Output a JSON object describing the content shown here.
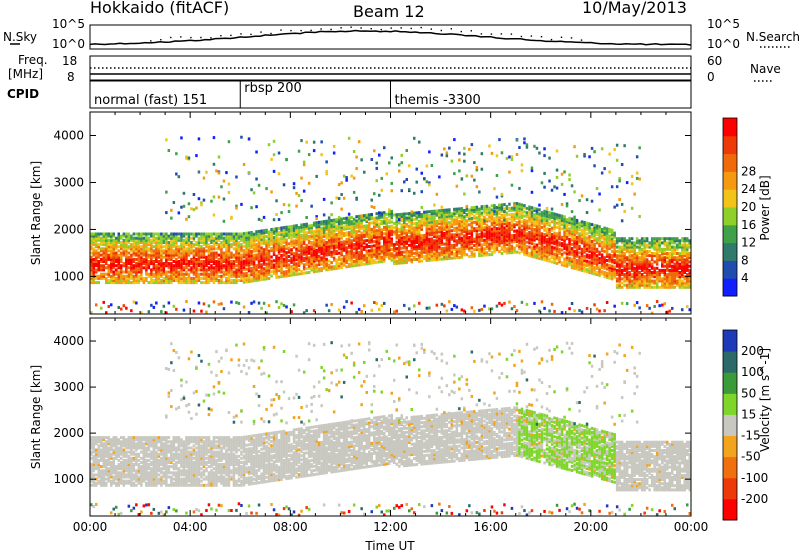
{
  "header": {
    "title_left": "Hokkaido (fitACF)",
    "title_center": "Beam 12",
    "title_right": "10/May/2013"
  },
  "noise_panel": {
    "left_label": "N.Sky",
    "right_label": "N.Search",
    "left_ticks": [
      "10^5",
      "10^0"
    ],
    "right_ticks": [
      "10^5",
      "10^0"
    ]
  },
  "freq_panel": {
    "left_label_1": "Freq.",
    "left_label_2": "[MHz]",
    "left_ticks": [
      "18",
      "8"
    ],
    "right_label": "Nave",
    "right_ticks": [
      "60",
      "0"
    ]
  },
  "cpid": {
    "label": "CPID",
    "modes": [
      {
        "name": "normal (fast) 151",
        "start_hour": 0
      },
      {
        "name": "rbsp 200",
        "start_hour": 6
      },
      {
        "name": "themis -3300",
        "start_hour": 12
      }
    ]
  },
  "chart_data": [
    {
      "type": "heatmap",
      "name": "power",
      "ylabel": "Slant Range [km]",
      "yticks": [
        "1000",
        "2000",
        "3000",
        "4000"
      ],
      "ylim": [
        200,
        4500
      ],
      "xlim": [
        0,
        24
      ],
      "colorbar": {
        "label": "Power [dB]",
        "ticks": [
          "4",
          "8",
          "12",
          "16",
          "20",
          "24",
          "28"
        ],
        "colors": [
          "#1020ff",
          "#204cb0",
          "#2f7a6a",
          "#3fa24a",
          "#8fcf2a",
          "#f2c418",
          "#f59a10",
          "#f06a0c",
          "#ee3a08",
          "#ff0000"
        ]
      }
    },
    {
      "type": "heatmap",
      "name": "velocity",
      "ylabel": "Slant Range [km]",
      "xlabel": "Time UT",
      "xticks": [
        "00:00",
        "04:00",
        "08:00",
        "12:00",
        "16:00",
        "20:00",
        "00:00"
      ],
      "yticks": [
        "1000",
        "2000",
        "3000",
        "4000"
      ],
      "ylim": [
        200,
        4500
      ],
      "xlim": [
        0,
        24
      ],
      "colorbar": {
        "label": "Velocity [m s^-1]",
        "ticks": [
          "200",
          "100",
          "50",
          "15",
          "-15",
          "-50",
          "-100",
          "-200"
        ],
        "colors": [
          "#1d3ab8",
          "#2c6a6a",
          "#3b9a3a",
          "#7fd62a",
          "#c8c8c0",
          "#f2a41c",
          "#f07010",
          "#ee3a08",
          "#ff0000"
        ]
      }
    }
  ]
}
